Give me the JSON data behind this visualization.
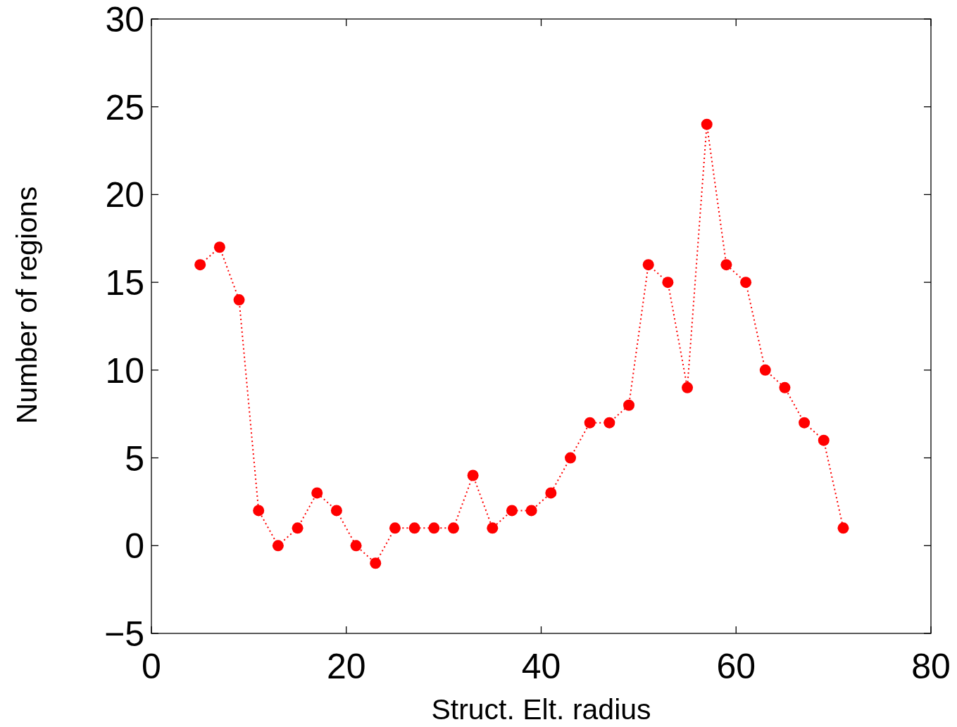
{
  "chart_data": {
    "type": "line",
    "xlabel": "Struct. Elt. radius",
    "ylabel": "Number of regions",
    "x": [
      5,
      7,
      9,
      11,
      13,
      15,
      17,
      19,
      21,
      23,
      25,
      27,
      29,
      31,
      33,
      35,
      37,
      39,
      41,
      43,
      45,
      47,
      49,
      51,
      53,
      55,
      57,
      59,
      61,
      63,
      65,
      67,
      69,
      71
    ],
    "series": [
      {
        "color": "#ff0000",
        "values": [
          16,
          17,
          14,
          2,
          0,
          1,
          3,
          2,
          0,
          -1,
          1,
          1,
          1,
          1,
          4,
          1,
          2,
          2,
          3,
          5,
          7,
          7,
          8,
          16,
          15,
          9,
          24,
          16,
          15,
          10,
          9,
          7,
          6,
          1
        ]
      }
    ],
    "xlim": [
      0,
      80
    ],
    "ylim": [
      -5,
      30
    ],
    "xticks": [
      0,
      20,
      40,
      60,
      80
    ],
    "yticks": [
      {
        "value": -5,
        "label": "−5"
      },
      0,
      5,
      10,
      15,
      20,
      25,
      30
    ],
    "marker": "circle",
    "line_style": "dotted"
  }
}
